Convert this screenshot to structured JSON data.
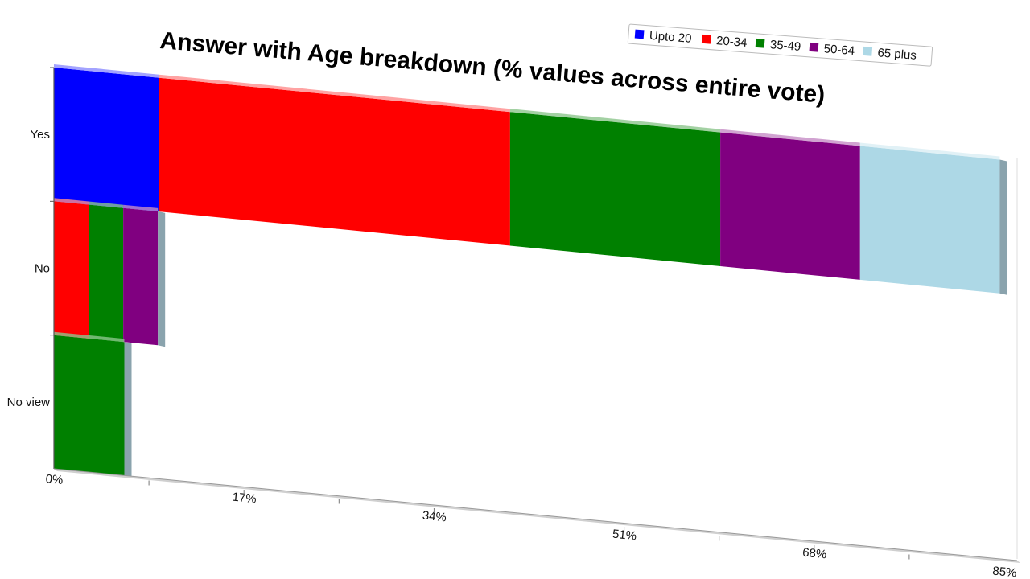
{
  "chart_data": {
    "type": "bar",
    "orientation": "horizontal",
    "stacked": true,
    "title": "Answer with Age breakdown (% values across entire vote)",
    "categories": [
      "Yes",
      "No",
      "No view"
    ],
    "series": [
      {
        "name": "Upto 20",
        "color": "#0000ff",
        "values": [
          9.4,
          0,
          0
        ]
      },
      {
        "name": "20-34",
        "color": "#ff0000",
        "values": [
          31.4,
          3.1,
          0
        ]
      },
      {
        "name": "35-49",
        "color": "#008000",
        "values": [
          18.8,
          3.1,
          6.3
        ]
      },
      {
        "name": "50-64",
        "color": "#800080",
        "values": [
          12.5,
          3.1,
          0
        ]
      },
      {
        "name": "65 plus",
        "color": "#add8e6",
        "values": [
          12.5,
          0,
          0
        ]
      }
    ],
    "x_ticks": [
      "0%",
      "17%",
      "34%",
      "51%",
      "68%",
      "85%"
    ],
    "xlim": [
      0,
      85
    ],
    "legend_position": "top-right",
    "grid": false,
    "style": "3d-perspective"
  }
}
